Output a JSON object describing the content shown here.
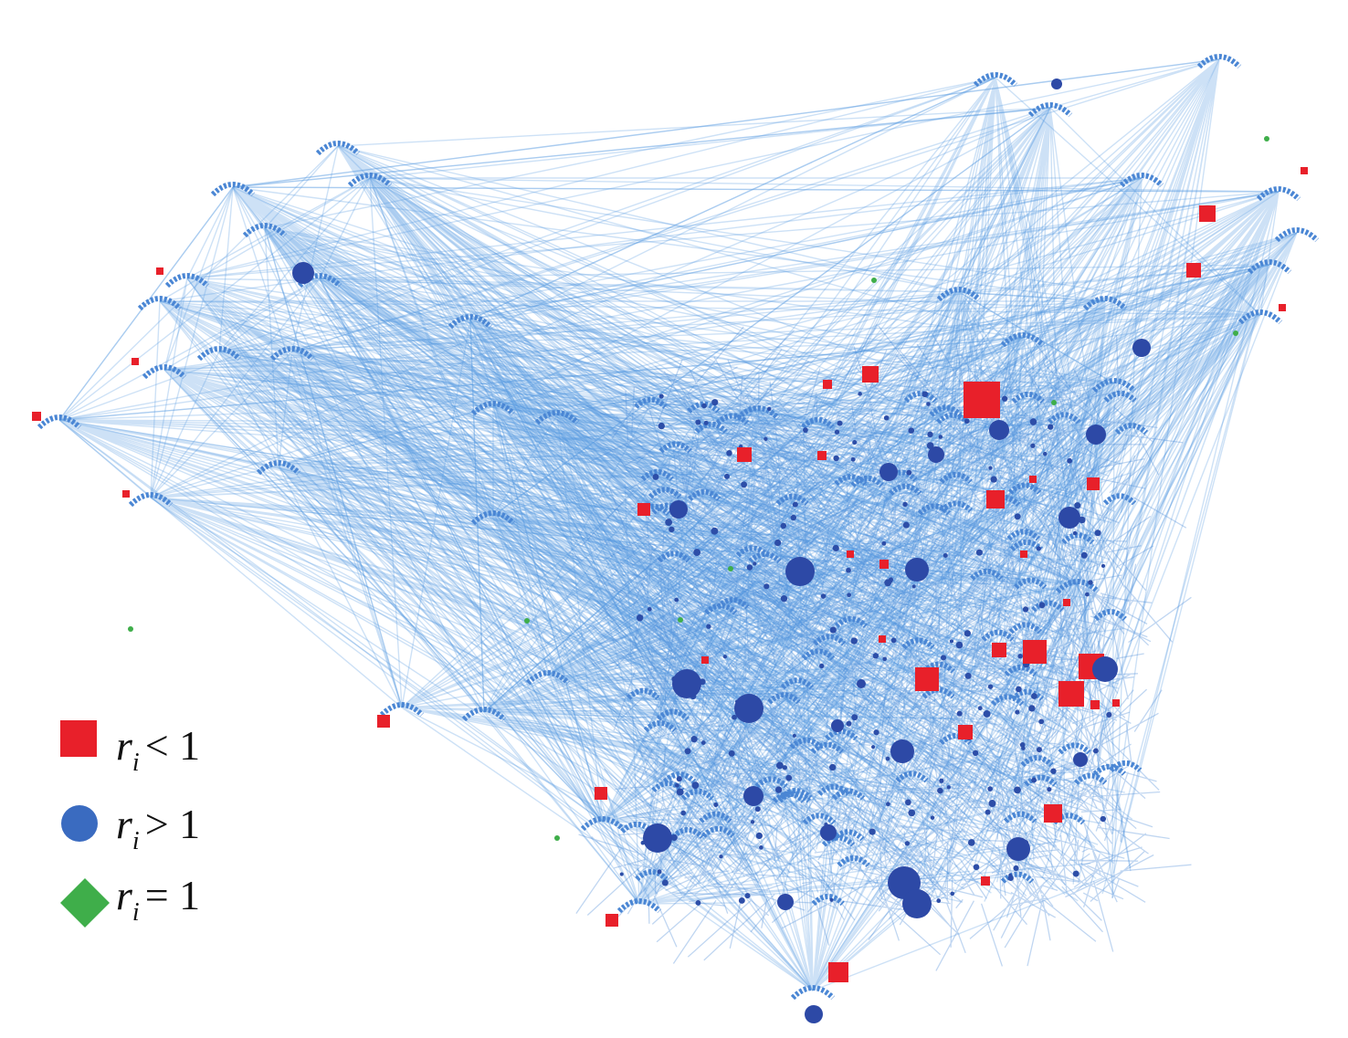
{
  "legend": {
    "items": [
      {
        "symbol": "r",
        "subscript": "i",
        "relation": "< 1"
      },
      {
        "symbol": "r",
        "subscript": "i",
        "relation": "> 1"
      },
      {
        "symbol": "r",
        "subscript": "i",
        "relation": "= 1"
      }
    ]
  }
}
